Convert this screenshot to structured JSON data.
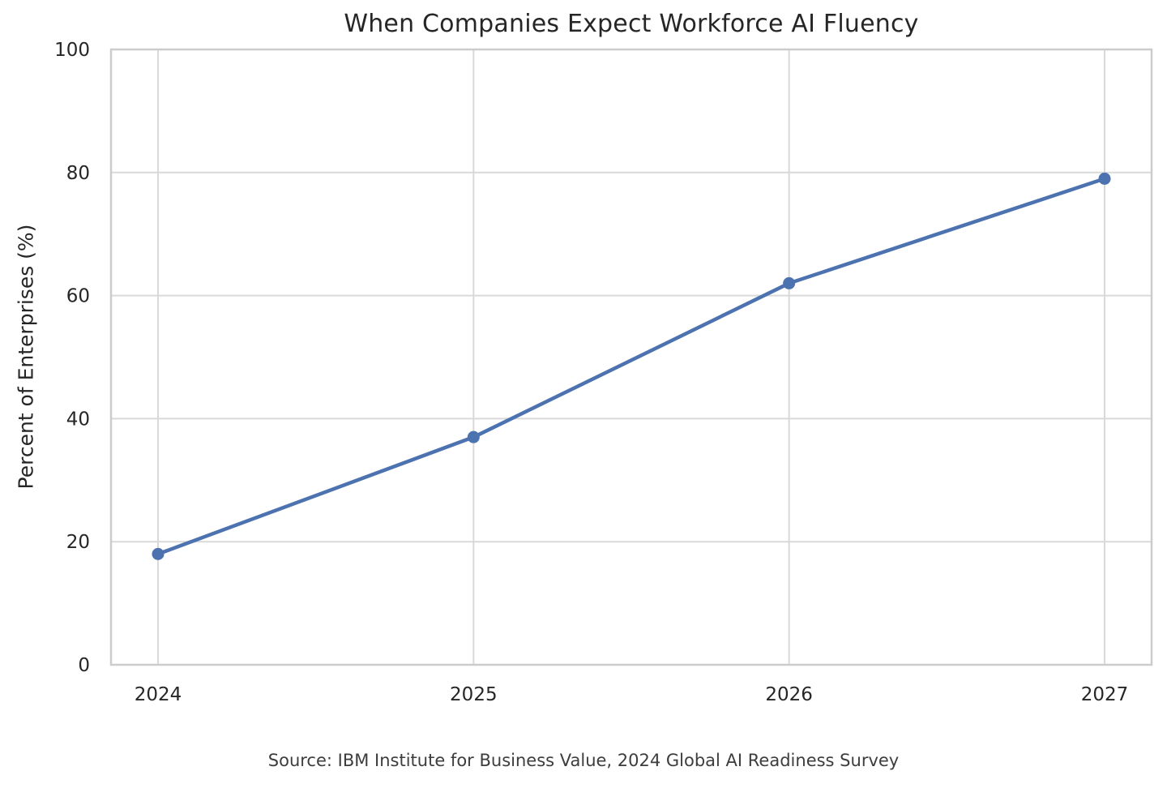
{
  "chart_data": {
    "type": "line",
    "title": "When Companies Expect Workforce AI Fluency",
    "xlabel": "",
    "ylabel": "Percent of Enterprises (%)",
    "categories": [
      "2024",
      "2025",
      "2026",
      "2027"
    ],
    "series": [
      {
        "name": "Percent of Enterprises",
        "values": [
          18,
          37,
          62,
          79
        ]
      }
    ],
    "yticks": [
      0,
      20,
      40,
      60,
      80,
      100
    ],
    "ylim": [
      0,
      100
    ],
    "grid": true,
    "legend_position": "none",
    "marker": "circle",
    "source_note": "Source: IBM Institute for Business Value, 2024 Global AI Readiness Survey"
  },
  "colors": {
    "line": "#4C72B0",
    "marker": "#4C72B0",
    "grid": "#d9d9d9",
    "spine": "#cccccc",
    "tick_label": "#262626",
    "title": "#262626",
    "source": "#3d3d3d",
    "background": "#ffffff"
  }
}
